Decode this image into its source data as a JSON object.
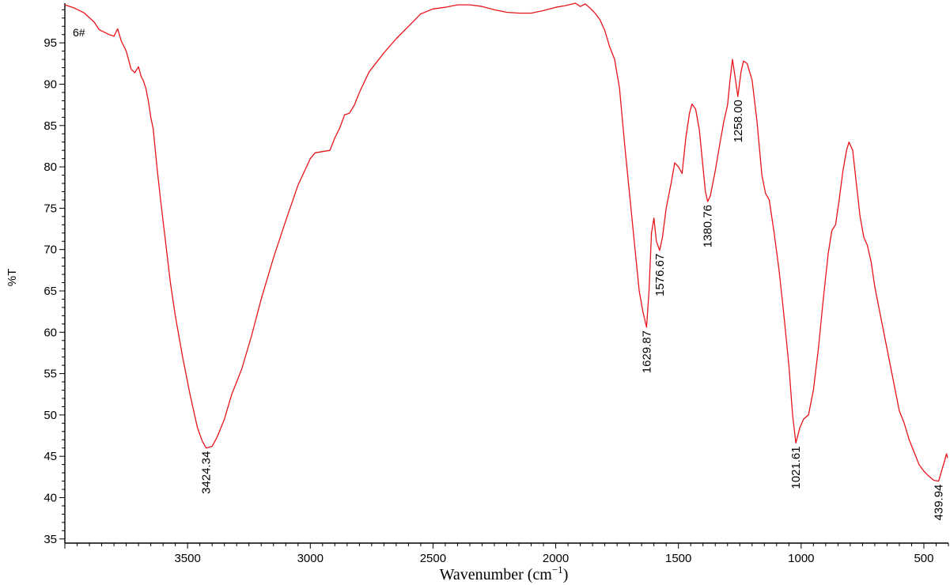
{
  "chart_data": {
    "type": "line",
    "title": "",
    "sample_label": "6#",
    "xlabel": "Wavenumber (cm",
    "xlabel_sup": "−1",
    "xlabel_close": ")",
    "ylabel": "%T",
    "xlim": [
      4000,
      400
    ],
    "ylim": [
      34.5,
      99.8
    ],
    "x_ticks": [
      3500,
      3000,
      2500,
      2000,
      1500,
      1000,
      500
    ],
    "y_ticks": [
      35,
      40,
      45,
      50,
      55,
      60,
      65,
      70,
      75,
      80,
      85,
      90,
      95
    ],
    "grid": false,
    "line_color": "#e8141b",
    "series": [
      {
        "name": "",
        "points": [
          [
            4000,
            99.6
          ],
          [
            3960,
            99.2
          ],
          [
            3920,
            98.6
          ],
          [
            3880,
            97.5
          ],
          [
            3860,
            96.6
          ],
          [
            3840,
            96.3
          ],
          [
            3820,
            96.0
          ],
          [
            3800,
            95.8
          ],
          [
            3785,
            96.7
          ],
          [
            3770,
            95.2
          ],
          [
            3750,
            94.0
          ],
          [
            3730,
            91.8
          ],
          [
            3715,
            91.4
          ],
          [
            3700,
            92.1
          ],
          [
            3690,
            91.0
          ],
          [
            3680,
            90.4
          ],
          [
            3670,
            89.5
          ],
          [
            3660,
            88.0
          ],
          [
            3650,
            86.0
          ],
          [
            3640,
            84.6
          ],
          [
            3625,
            80.0
          ],
          [
            3610,
            76.0
          ],
          [
            3590,
            71.0
          ],
          [
            3570,
            66.0
          ],
          [
            3550,
            62.0
          ],
          [
            3520,
            57.0
          ],
          [
            3490,
            52.5
          ],
          [
            3460,
            48.5
          ],
          [
            3440,
            46.8
          ],
          [
            3424,
            46.0
          ],
          [
            3400,
            46.2
          ],
          [
            3380,
            47.3
          ],
          [
            3350,
            49.5
          ],
          [
            3320,
            52.5
          ],
          [
            3280,
            55.5
          ],
          [
            3240,
            59.5
          ],
          [
            3200,
            64.0
          ],
          [
            3150,
            69.0
          ],
          [
            3100,
            73.5
          ],
          [
            3050,
            77.8
          ],
          [
            3000,
            81.0
          ],
          [
            2980,
            81.7
          ],
          [
            2940,
            81.9
          ],
          [
            2920,
            82.0
          ],
          [
            2900,
            83.5
          ],
          [
            2880,
            84.7
          ],
          [
            2860,
            86.3
          ],
          [
            2840,
            86.5
          ],
          [
            2820,
            87.5
          ],
          [
            2800,
            89.0
          ],
          [
            2760,
            91.5
          ],
          [
            2700,
            93.8
          ],
          [
            2650,
            95.5
          ],
          [
            2600,
            97.0
          ],
          [
            2550,
            98.5
          ],
          [
            2500,
            99.1
          ],
          [
            2450,
            99.3
          ],
          [
            2400,
            99.6
          ],
          [
            2350,
            99.6
          ],
          [
            2300,
            99.4
          ],
          [
            2250,
            99.0
          ],
          [
            2200,
            98.7
          ],
          [
            2150,
            98.6
          ],
          [
            2100,
            98.6
          ],
          [
            2050,
            98.9
          ],
          [
            2000,
            99.3
          ],
          [
            1960,
            99.5
          ],
          [
            1920,
            99.8
          ],
          [
            1900,
            99.4
          ],
          [
            1880,
            99.7
          ],
          [
            1860,
            99.2
          ],
          [
            1840,
            98.6
          ],
          [
            1820,
            97.8
          ],
          [
            1800,
            96.5
          ],
          [
            1780,
            94.5
          ],
          [
            1760,
            93.0
          ],
          [
            1740,
            89.5
          ],
          [
            1720,
            83.0
          ],
          [
            1700,
            77.0
          ],
          [
            1680,
            71.0
          ],
          [
            1660,
            65.0
          ],
          [
            1645,
            62.5
          ],
          [
            1629.87,
            60.6
          ],
          [
            1620,
            65.0
          ],
          [
            1610,
            72.0
          ],
          [
            1600,
            73.8
          ],
          [
            1590,
            71.0
          ],
          [
            1576.67,
            69.9
          ],
          [
            1565,
            71.5
          ],
          [
            1550,
            75.0
          ],
          [
            1530,
            78.0
          ],
          [
            1515,
            80.5
          ],
          [
            1500,
            80.0
          ],
          [
            1485,
            79.2
          ],
          [
            1470,
            83.5
          ],
          [
            1455,
            86.5
          ],
          [
            1445,
            87.6
          ],
          [
            1430,
            87.0
          ],
          [
            1415,
            84.5
          ],
          [
            1400,
            80.0
          ],
          [
            1390,
            77.0
          ],
          [
            1380.76,
            75.8
          ],
          [
            1370,
            76.5
          ],
          [
            1350,
            79.5
          ],
          [
            1330,
            83.0
          ],
          [
            1315,
            85.5
          ],
          [
            1300,
            87.5
          ],
          [
            1290,
            90.5
          ],
          [
            1280,
            93.0
          ],
          [
            1270,
            91.0
          ],
          [
            1258.0,
            88.5
          ],
          [
            1245,
            91.5
          ],
          [
            1235,
            92.8
          ],
          [
            1220,
            92.5
          ],
          [
            1200,
            90.5
          ],
          [
            1180,
            85.5
          ],
          [
            1160,
            79.0
          ],
          [
            1145,
            76.8
          ],
          [
            1130,
            76.0
          ],
          [
            1110,
            72.0
          ],
          [
            1090,
            67.5
          ],
          [
            1070,
            62.0
          ],
          [
            1050,
            56.0
          ],
          [
            1035,
            50.0
          ],
          [
            1021.61,
            46.6
          ],
          [
            1005,
            48.5
          ],
          [
            990,
            49.5
          ],
          [
            970,
            50.0
          ],
          [
            950,
            53.0
          ],
          [
            930,
            58.0
          ],
          [
            910,
            64.0
          ],
          [
            890,
            69.5
          ],
          [
            875,
            72.3
          ],
          [
            860,
            73.0
          ],
          [
            845,
            76.0
          ],
          [
            830,
            79.5
          ],
          [
            815,
            82.0
          ],
          [
            805,
            83.0
          ],
          [
            790,
            82.0
          ],
          [
            775,
            78.0
          ],
          [
            760,
            74.0
          ],
          [
            745,
            71.5
          ],
          [
            730,
            70.5
          ],
          [
            715,
            68.5
          ],
          [
            700,
            65.5
          ],
          [
            680,
            62.5
          ],
          [
            660,
            59.5
          ],
          [
            640,
            56.5
          ],
          [
            620,
            53.5
          ],
          [
            600,
            50.5
          ],
          [
            580,
            49.0
          ],
          [
            560,
            47.0
          ],
          [
            540,
            45.5
          ],
          [
            520,
            44.0
          ],
          [
            500,
            43.2
          ],
          [
            480,
            42.6
          ],
          [
            460,
            42.1
          ],
          [
            439.94,
            42.0
          ],
          [
            425,
            43.5
          ],
          [
            415,
            44.5
          ],
          [
            408,
            45.3
          ],
          [
            403,
            44.8
          ]
        ]
      }
    ],
    "annotations": [
      {
        "text": "3424.34",
        "x": 3424.34,
        "y": 46.0
      },
      {
        "text": "1629.87",
        "x": 1629.87,
        "y": 60.6
      },
      {
        "text": "1576.67",
        "x": 1576.67,
        "y": 69.9
      },
      {
        "text": "1380.76",
        "x": 1380.76,
        "y": 75.8
      },
      {
        "text": "1258.00",
        "x": 1258.0,
        "y": 88.5
      },
      {
        "text": "1021.61",
        "x": 1021.61,
        "y": 46.6
      },
      {
        "text": "439.94",
        "x": 439.94,
        "y": 42.0
      }
    ]
  }
}
